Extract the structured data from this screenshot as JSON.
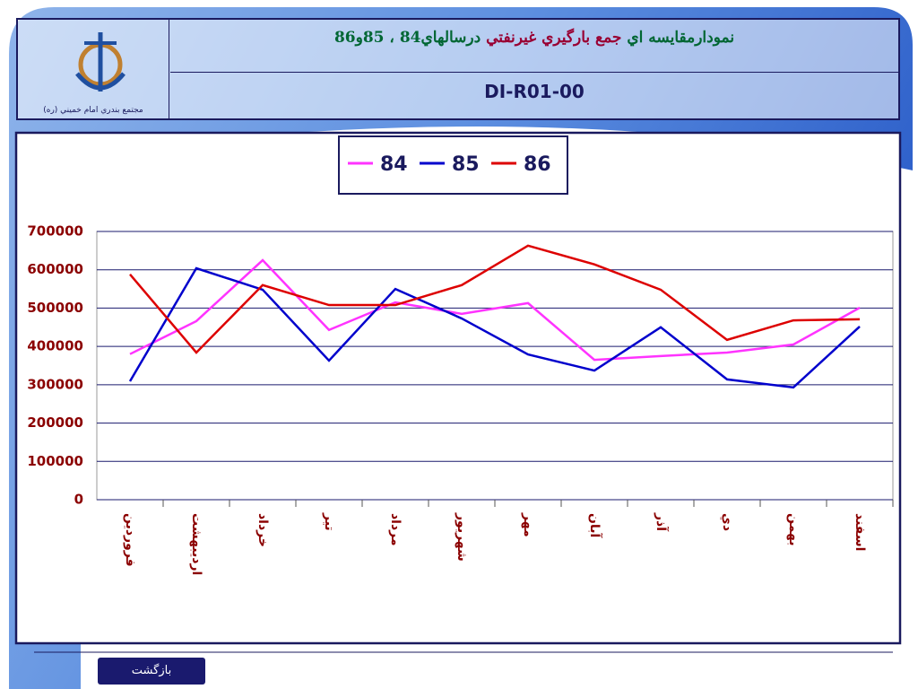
{
  "header": {
    "title_parts": [
      "نمودارمقايسه اي",
      "جمع بارگيري غيرنفتي",
      "درسالهاي84 ، 85و86"
    ],
    "code": "DI-R01-00",
    "logo_caption": "مجتمع بندري امام خميني (ره)"
  },
  "chart_data": {
    "type": "line",
    "categories": [
      "فروردين",
      "ارديبهشت",
      "خرداد",
      "تير",
      "مرداد",
      "شهريور",
      "مهر",
      "آبان",
      "آذر",
      "دي",
      "بهمن",
      "اسفند"
    ],
    "series": [
      {
        "name": "84",
        "color": "#ff33ff",
        "values": [
          380000,
          466000,
          625000,
          443000,
          515000,
          485000,
          513000,
          365000,
          375000,
          384000,
          405000,
          501000
        ]
      },
      {
        "name": "85",
        "color": "#0000cc",
        "values": [
          309000,
          604000,
          548000,
          363000,
          550000,
          473000,
          379000,
          337000,
          450000,
          314000,
          293000,
          452000
        ]
      },
      {
        "name": "86",
        "color": "#dd0000",
        "values": [
          588000,
          384000,
          560000,
          508000,
          508000,
          560000,
          663000,
          614000,
          548000,
          417000,
          468000,
          471000
        ]
      }
    ],
    "ylim": [
      0,
      700000
    ],
    "yticks": [
      0,
      100000,
      200000,
      300000,
      400000,
      500000,
      600000,
      700000
    ],
    "grid": true
  },
  "footer": {
    "back_button": "بازگشت"
  }
}
